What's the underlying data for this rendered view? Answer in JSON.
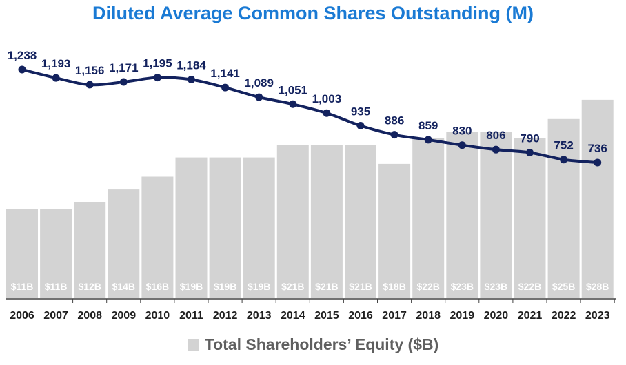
{
  "chart_data": {
    "type": "bar+line",
    "title": "Diluted Average Common Shares Outstanding (M)",
    "categories": [
      "2006",
      "2007",
      "2008",
      "2009",
      "2010",
      "2011",
      "2012",
      "2013",
      "2014",
      "2015",
      "2016",
      "2017",
      "2018",
      "2019",
      "2020",
      "2021",
      "2022",
      "2023"
    ],
    "bar_series": {
      "name": "Total Shareholders’ Equity ($B)",
      "values": [
        11,
        11,
        12,
        14,
        16,
        19,
        19,
        19,
        21,
        21,
        21,
        18,
        22,
        23,
        23,
        22,
        25,
        28
      ],
      "labels": [
        "$11B",
        "$11B",
        "$12B",
        "$14B",
        "$16B",
        "$19B",
        "$19B",
        "$19B",
        "$21B",
        "$21B",
        "$21B",
        "$18B",
        "$22B",
        "$23B",
        "$23B",
        "$22B",
        "$25B",
        "$28B"
      ],
      "color": "#d3d3d3"
    },
    "line_series": {
      "values": [
        1238,
        1193,
        1156,
        1171,
        1195,
        1184,
        1141,
        1089,
        1051,
        1003,
        935,
        886,
        859,
        830,
        806,
        790,
        752,
        736
      ],
      "labels": [
        "1,238",
        "1,193",
        "1,156",
        "1,171",
        "1,195",
        "1,184",
        "1,141",
        "1,089",
        "1,051",
        "1,003",
        "935",
        "886",
        "859",
        "830",
        "806",
        "790",
        "752",
        "736"
      ],
      "color": "#13225e"
    },
    "legend": "Total Shareholders’ Equity ($B)",
    "colors": {
      "title": "#1a7ad4",
      "bar_label": "#ffffff",
      "axis_text": "#1f1f1f",
      "legend_text": "#5f5f5f"
    },
    "grid": false
  }
}
